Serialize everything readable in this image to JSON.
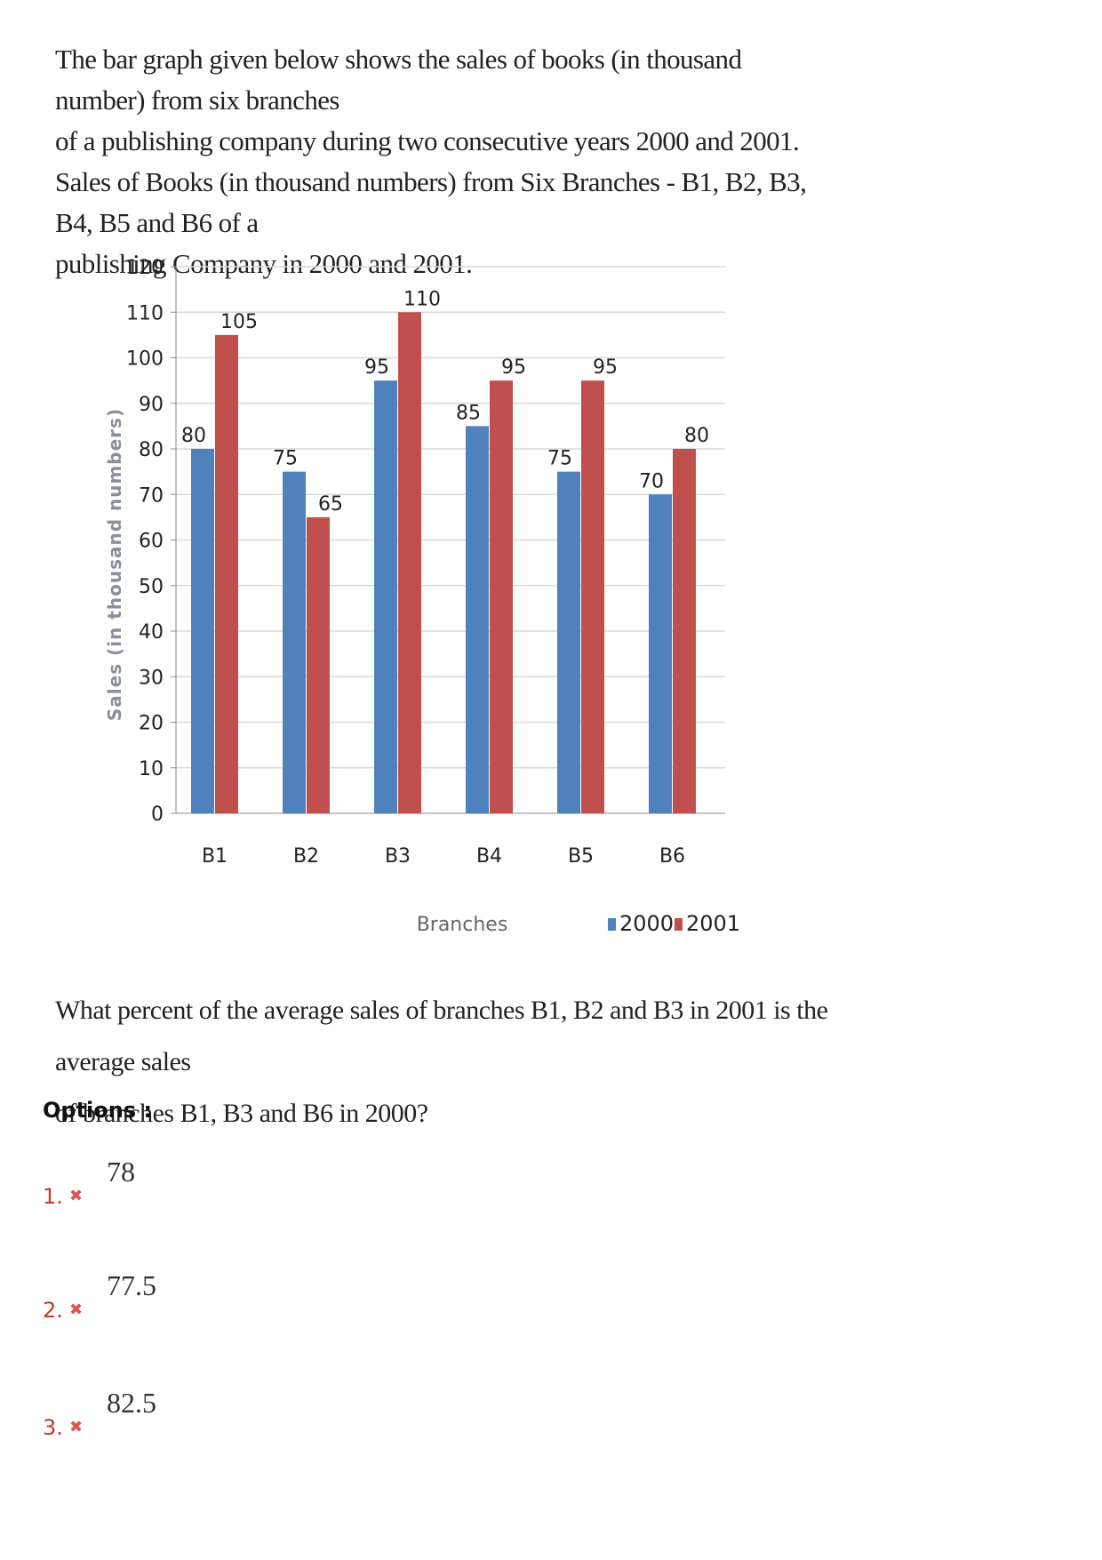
{
  "intro": {
    "line1": "The bar graph given below shows the sales of books (in thousand number) from six branches",
    "line2": "of a publishing company during two consecutive years 2000 and 2001.",
    "line3": "Sales of Books (in thousand numbers) from Six Branches - B1, B2, B3, B4, B5 and B6 of a",
    "line4": "publishing Company in 2000 and 2001."
  },
  "chart_data": {
    "type": "bar",
    "categories": [
      "B1",
      "B2",
      "B3",
      "B4",
      "B5",
      "B6"
    ],
    "series": [
      {
        "name": "2000",
        "values": [
          80,
          75,
          95,
          85,
          75,
          70
        ],
        "color": "#4f81bd"
      },
      {
        "name": "2001",
        "values": [
          105,
          65,
          110,
          95,
          95,
          80
        ],
        "color": "#c0504d"
      }
    ],
    "xlabel": "Branches",
    "ylabel": "Sales (in thousand numbers)",
    "ylim": [
      0,
      120
    ],
    "yticks": [
      0,
      10,
      20,
      30,
      40,
      50,
      60,
      70,
      80,
      90,
      100,
      110,
      120
    ],
    "grid": true,
    "legend": "bottom-right"
  },
  "question": {
    "line1": "What percent of the average sales of branches B1, B2 and B3 in 2001 is the average sales",
    "line2": "of branches B1, B3 and B6 in 2000?"
  },
  "options_heading": "Options :",
  "options": [
    {
      "number": "1.",
      "icon": "cross-icon",
      "text": "78"
    },
    {
      "number": "2.",
      "icon": "cross-icon",
      "text": "77.5"
    },
    {
      "number": "3.",
      "icon": "cross-icon",
      "text": "82.5"
    }
  ]
}
